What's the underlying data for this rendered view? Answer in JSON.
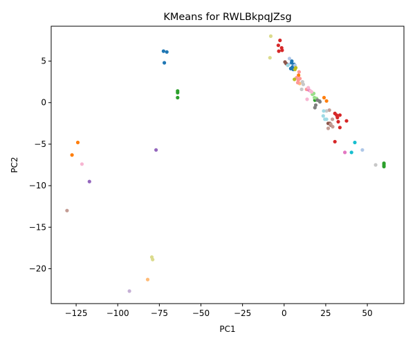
{
  "chart_data": {
    "type": "scatter",
    "title": "KMeans for RWLBkpqJZsg",
    "xlabel": "PC1",
    "ylabel": "PC2",
    "xlim": [
      -140,
      72
    ],
    "ylim": [
      -24.2,
      9.2
    ],
    "xticks": [
      -125,
      -100,
      -75,
      -50,
      -25,
      0,
      25,
      50
    ],
    "yticks": [
      -20,
      -15,
      -10,
      -5,
      0,
      5
    ],
    "grid": false,
    "legend": "none",
    "series": [
      {
        "color": "#1f77b4",
        "points": [
          [
            -72.5,
            6.2
          ],
          [
            -70.5,
            6.1
          ],
          [
            -72,
            4.8
          ],
          [
            4.5,
            4.8
          ],
          [
            5,
            4.3
          ],
          [
            4,
            4.1
          ],
          [
            6,
            4.6
          ],
          [
            5.5,
            4.0
          ],
          [
            4.6,
            5.0
          ]
        ]
      },
      {
        "color": "#aec7e8",
        "points": [
          [
            3.2,
            5.3
          ],
          [
            2.6,
            4.6
          ],
          [
            6.5,
            4.5
          ],
          [
            47,
            -5.7
          ]
        ]
      },
      {
        "color": "#ff7f0e",
        "points": [
          [
            -124,
            -4.8
          ],
          [
            -127.5,
            -6.3
          ],
          [
            24,
            0.6
          ],
          [
            25.5,
            0.2
          ],
          [
            8.7,
            3.3
          ]
        ]
      },
      {
        "color": "#ffbb78",
        "points": [
          [
            -82,
            -21.3
          ],
          [
            9.3,
            2.3
          ]
        ]
      },
      {
        "color": "#2ca02c",
        "points": [
          [
            -64,
            1.4
          ],
          [
            -64,
            1.2
          ],
          [
            -64,
            0.6
          ],
          [
            60,
            -7.3
          ],
          [
            60,
            -7.5
          ],
          [
            60,
            -7.7
          ],
          [
            18.5,
            0.3
          ]
        ]
      },
      {
        "color": "#98df8a",
        "points": [
          [
            17,
            1.0
          ],
          [
            18.2,
            0.6
          ],
          [
            17.8,
            1.1
          ],
          [
            19.5,
            0.5
          ]
        ]
      },
      {
        "color": "#d62728",
        "points": [
          [
            -2.5,
            7.5
          ],
          [
            -3.5,
            6.9
          ],
          [
            -1.5,
            6.6
          ],
          [
            -1.2,
            6.3
          ],
          [
            -3.2,
            6.2
          ],
          [
            30.5,
            -1.3
          ],
          [
            32,
            -1.8
          ],
          [
            33.5,
            -1.5
          ],
          [
            32.5,
            -2.3
          ],
          [
            33.5,
            -3.0
          ],
          [
            37.5,
            -2.2
          ],
          [
            30.5,
            -4.7
          ],
          [
            31.5,
            -1.5
          ]
        ]
      },
      {
        "color": "#ff9896",
        "points": [
          [
            9,
            3.7
          ],
          [
            8.5,
            2.7
          ],
          [
            7.5,
            3.0
          ],
          [
            9.5,
            2.9
          ],
          [
            8.2,
            2.4
          ],
          [
            13.5,
            1.6
          ]
        ]
      },
      {
        "color": "#9467bd",
        "points": [
          [
            -77,
            -5.7
          ],
          [
            -117,
            -9.5
          ]
        ]
      },
      {
        "color": "#c5b0d5",
        "points": [
          [
            -93,
            -22.7
          ]
        ]
      },
      {
        "color": "#8c564b",
        "points": [
          [
            0.5,
            4.9
          ],
          [
            1.2,
            4.7
          ],
          [
            28,
            -2.7
          ],
          [
            27.5,
            -2.5
          ],
          [
            26.5,
            -2.5
          ]
        ]
      },
      {
        "color": "#c49c94",
        "points": [
          [
            -130.5,
            -13
          ],
          [
            26.5,
            -3.1
          ],
          [
            29.2,
            -2.9
          ],
          [
            27.2,
            -0.9
          ],
          [
            29,
            -2.0
          ],
          [
            28,
            -2.6
          ]
        ]
      },
      {
        "color": "#e377c2",
        "points": [
          [
            15,
            1.5
          ],
          [
            36.5,
            -6.0
          ]
        ]
      },
      {
        "color": "#f7b6d2",
        "points": [
          [
            -121.5,
            -7.4
          ],
          [
            14.5,
            1.8
          ],
          [
            13.8,
            0.4
          ],
          [
            16.5,
            1.3
          ],
          [
            15.8,
            1.4
          ]
        ]
      },
      {
        "color": "#7f7f7f",
        "points": [
          [
            20,
            0.3
          ],
          [
            21.5,
            0.1
          ],
          [
            19,
            -0.3
          ],
          [
            18.5,
            -0.6
          ],
          [
            21.2,
            0.2
          ]
        ]
      },
      {
        "color": "#c7c7c7",
        "points": [
          [
            10.5,
            1.6
          ],
          [
            11,
            2.5
          ],
          [
            11.5,
            2.2
          ],
          [
            55,
            -7.5
          ],
          [
            25.5,
            -1.0
          ]
        ]
      },
      {
        "color": "#bcbd22",
        "points": [
          [
            6.5,
            4.0
          ],
          [
            6.2,
            2.8
          ],
          [
            7,
            4.2
          ]
        ]
      },
      {
        "color": "#dbdb8d",
        "points": [
          [
            -8,
            8.0
          ],
          [
            -8.5,
            5.4
          ],
          [
            -79.5,
            -18.6
          ],
          [
            -79,
            -18.9
          ]
        ]
      },
      {
        "color": "#17becf",
        "points": [
          [
            42.5,
            -4.8
          ],
          [
            40.5,
            -6.0
          ]
        ]
      },
      {
        "color": "#9edae5",
        "points": [
          [
            23.8,
            -1.0
          ],
          [
            23.5,
            -1.6
          ],
          [
            24.5,
            -2.0
          ],
          [
            25.5,
            -2.0
          ],
          [
            2.2,
            4.5
          ]
        ]
      }
    ]
  }
}
